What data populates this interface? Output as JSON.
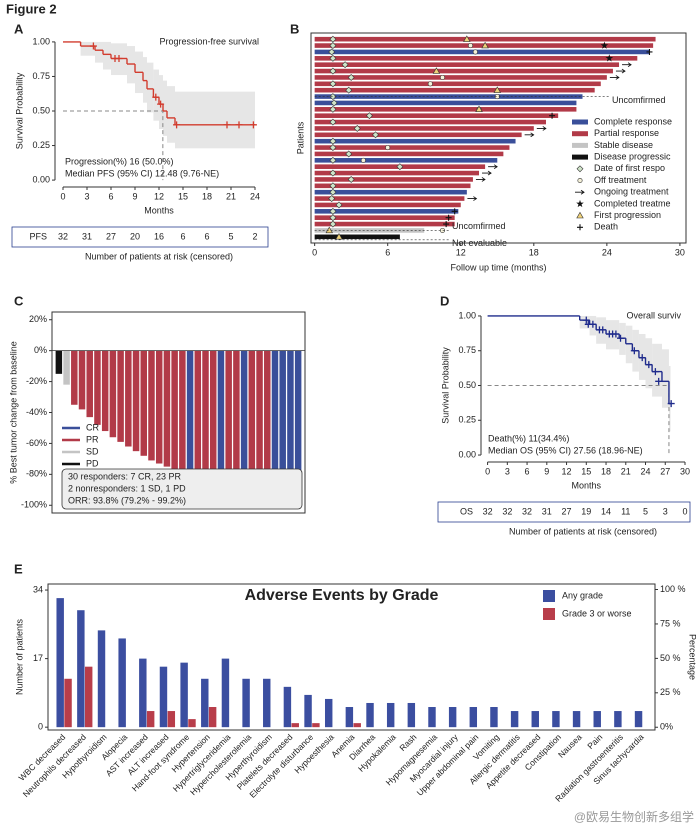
{
  "figure_label": "Figure 2",
  "panel_labels": [
    "A",
    "B",
    "C",
    "D",
    "E"
  ],
  "watermark": "@欧易生物创新多组学",
  "chart_data": [
    {
      "type": "step",
      "ylabel": "Survival Probability",
      "xlabel": "Months",
      "xlim": [
        -1,
        25
      ],
      "ylim": [
        -0.05,
        1.05
      ],
      "xticks": [
        0,
        3,
        6,
        9,
        12,
        15,
        18,
        21,
        24
      ],
      "yticks": [
        {
          "value": 0,
          "label": "0.00"
        },
        {
          "value": 0.25,
          "label": "0.25"
        },
        {
          "value": 0.5,
          "label": "0.50"
        },
        {
          "value": 0.75,
          "label": "0.75"
        },
        {
          "value": 1,
          "label": "1.00"
        }
      ],
      "x": [
        0,
        2.2,
        4,
        5,
        6,
        8,
        9,
        10,
        10.5,
        11.3,
        12,
        12.5,
        13,
        14,
        24
      ],
      "series": [
        {
          "name": "Progression-free survival",
          "color": "#d23c2e",
          "values": [
            1,
            0.97,
            0.94,
            0.91,
            0.88,
            0.84,
            0.78,
            0.72,
            0.66,
            0.6,
            0.55,
            0.5,
            0.45,
            0.4,
            0.4
          ],
          "ci_upper": [
            1,
            1,
            1,
            1,
            0.99,
            0.97,
            0.93,
            0.89,
            0.85,
            0.8,
            0.76,
            0.72,
            0.68,
            0.64,
            0.64
          ],
          "ci_lower": [
            1,
            0.9,
            0.85,
            0.8,
            0.76,
            0.7,
            0.63,
            0.56,
            0.49,
            0.43,
            0.37,
            0.32,
            0.27,
            0.23,
            0.23
          ],
          "censor_x": [
            3.8,
            6.5,
            7,
            11.6,
            12.2,
            14.2,
            20.5,
            22,
            23.8
          ],
          "censor_values": [
            0.97,
            0.88,
            0.88,
            0.6,
            0.55,
            0.4,
            0.4,
            0.4,
            0.4
          ]
        }
      ],
      "median": {
        "x": 12.48,
        "y": 0.5
      },
      "annotations": [
        "Progression(%)   16 (50.0%)",
        "Median PFS (95% CI) 12.48 (9.76-NE)"
      ],
      "risk_table": {
        "label": "PFS",
        "values": [
          32,
          31,
          27,
          20,
          16,
          6,
          6,
          5,
          2
        ],
        "title": "Number of patients at risk (censored)"
      }
    },
    {
      "type": "swimmer",
      "ylabel": "Patients",
      "xlabel": "Follow up time (months)",
      "xlim": [
        -0.3,
        30.5
      ],
      "xticks": [
        0,
        6,
        12,
        18,
        24,
        30
      ],
      "values": [
        28,
        27.8,
        27.5,
        26.5,
        25,
        24.5,
        24,
        23.5,
        23,
        22,
        21.5,
        21.5,
        20,
        19,
        18,
        17,
        16.5,
        16,
        15.5,
        15,
        14,
        13.5,
        13,
        12.8,
        12.5,
        12.3,
        12,
        11.8,
        11.5,
        11.5,
        9,
        7
      ],
      "groups": [
        "Partial response",
        "Partial response",
        "Complete response",
        "Partial response",
        "Partial response",
        "Partial response",
        "Partial response",
        "Partial response",
        "Partial response",
        "Complete response",
        "Complete response",
        "Partial response",
        "Partial response",
        "Partial response",
        "Partial response",
        "Partial response",
        "Complete response",
        "Partial response",
        "Partial response",
        "Complete response",
        "Partial response",
        "Partial response",
        "Partial response",
        "Partial response",
        "Complete response",
        "Partial response",
        "Partial response",
        "Complete response",
        "Partial response",
        "Partial response",
        "Stable disease",
        "Disease progressic"
      ],
      "first_response": [
        1.5,
        1.5,
        1.4,
        1.5,
        2.5,
        1.5,
        3,
        1.5,
        2.8,
        1.5,
        1.6,
        1.5,
        4.5,
        1.5,
        3.5,
        5,
        1.5,
        1.5,
        2.8,
        1.5,
        7,
        1.5,
        3,
        1.5,
        1.5,
        1.4,
        2,
        1.5,
        1.5,
        1.5,
        null,
        null
      ],
      "off_treatment": [
        null,
        12.8,
        13.2,
        null,
        null,
        null,
        10.5,
        9.5,
        null,
        15,
        null,
        13.5,
        null,
        null,
        null,
        null,
        null,
        6,
        null,
        4,
        null,
        null,
        null,
        null,
        null,
        null,
        null,
        null,
        null,
        null,
        10.5,
        null
      ],
      "ongoing": [
        false,
        false,
        false,
        false,
        true,
        true,
        true,
        false,
        false,
        false,
        false,
        false,
        false,
        false,
        true,
        true,
        false,
        false,
        false,
        false,
        true,
        true,
        true,
        false,
        false,
        true,
        false,
        false,
        false,
        false,
        false,
        false
      ],
      "completed": [
        null,
        23.8,
        null,
        24.2,
        null,
        null,
        null,
        null,
        null,
        null,
        null,
        null,
        null,
        null,
        null,
        null,
        null,
        null,
        null,
        null,
        null,
        null,
        null,
        null,
        null,
        null,
        null,
        null,
        null,
        null,
        null,
        null
      ],
      "first_progression": [
        12.5,
        14,
        null,
        null,
        null,
        10,
        null,
        null,
        15,
        null,
        null,
        13.5,
        null,
        null,
        null,
        null,
        null,
        null,
        null,
        null,
        null,
        null,
        null,
        null,
        null,
        null,
        null,
        null,
        null,
        null,
        1.2,
        2
      ],
      "death": [
        null,
        null,
        27.5,
        null,
        null,
        null,
        null,
        null,
        null,
        null,
        null,
        null,
        19.5,
        null,
        null,
        null,
        null,
        null,
        null,
        null,
        null,
        null,
        null,
        null,
        null,
        null,
        null,
        11.5,
        11,
        10.8,
        null,
        null
      ],
      "legend": [
        {
          "name": "Complete response",
          "color": "#3a4f9a",
          "kind": "bar"
        },
        {
          "name": "Partial response",
          "color": "#b23a48",
          "kind": "bar"
        },
        {
          "name": "Stable disease",
          "color": "#c4c4c4",
          "kind": "bar"
        },
        {
          "name": "Disease progressic",
          "color": "#111111",
          "kind": "bar"
        },
        {
          "name": "Date of first respo",
          "color": "#cfe3c8",
          "kind": "diamond"
        },
        {
          "name": "Off treatment",
          "color": "#f4f0d8",
          "kind": "circle"
        },
        {
          "name": "Ongoing treatment",
          "color": "#111111",
          "kind": "arrow"
        },
        {
          "name": "Completed treatme",
          "color": "#111111",
          "kind": "star"
        },
        {
          "name": "First progression",
          "color": "#f0d27a",
          "kind": "triangle"
        },
        {
          "name": "Death",
          "color": "#111111",
          "kind": "plus"
        }
      ],
      "annotations": [
        "Uncomfirmed",
        "Uncomfirmed",
        "Not evaluable"
      ]
    },
    {
      "type": "bar",
      "ylabel": "% Best tumor change from baseline",
      "ylim": [
        -105,
        25
      ],
      "yticks": [
        {
          "value": 20,
          "label": "20%"
        },
        {
          "value": 0,
          "label": "0%"
        },
        {
          "value": -20,
          "label": "-20%"
        },
        {
          "value": -40,
          "label": "-40%"
        },
        {
          "value": -60,
          "label": "-60%"
        },
        {
          "value": -80,
          "label": "-80%"
        },
        {
          "value": -100,
          "label": "-100%"
        }
      ],
      "values": [
        -15,
        -22,
        -35,
        -38,
        -43,
        -48,
        -52,
        -56,
        -59,
        -62,
        -65,
        -68,
        -71,
        -73,
        -75,
        -77,
        -79,
        -81,
        -83,
        -85,
        -87,
        -89,
        -90,
        -92,
        -100,
        -100,
        -100,
        -100,
        -100,
        -100,
        -100,
        -100
      ],
      "groups": [
        "PD",
        "SD",
        "PR",
        "PR",
        "PR",
        "PR",
        "PR",
        "PR",
        "PR",
        "PR",
        "PR",
        "PR",
        "PR",
        "PR",
        "PR",
        "PR",
        "PR",
        "CR",
        "PR",
        "PR",
        "PR",
        "CR",
        "PR",
        "PR",
        "CR",
        "PR",
        "PR",
        "PR",
        "CR",
        "CR",
        "CR",
        "CR"
      ],
      "legend": [
        {
          "name": "CR",
          "color": "#3a4f9a"
        },
        {
          "name": "PR",
          "color": "#b23a48"
        },
        {
          "name": "SD",
          "color": "#c4c4c4"
        },
        {
          "name": "PD",
          "color": "#111111"
        }
      ],
      "annotations": [
        "30 responders: 7 CR, 23 PR",
        "2 nonresponders: 1 SD, 1 PD",
        "ORR:  93.8% (79.2% - 99.2%)"
      ]
    },
    {
      "type": "step",
      "ylabel": "Survival Probability",
      "xlabel": "Months",
      "xlim": [
        -1,
        30
      ],
      "ylim": [
        -0.05,
        1.05
      ],
      "xticks": [
        0,
        3,
        6,
        9,
        12,
        15,
        18,
        21,
        24,
        27,
        30
      ],
      "yticks": [
        {
          "value": 0,
          "label": "0.00"
        },
        {
          "value": 0.25,
          "label": "0.25"
        },
        {
          "value": 0.5,
          "label": "0.50"
        },
        {
          "value": 0.75,
          "label": "0.75"
        },
        {
          "value": 1,
          "label": "1.00"
        }
      ],
      "x": [
        0,
        14,
        15.5,
        16.5,
        18,
        20,
        21,
        22,
        23,
        24,
        25,
        26.5,
        27.56,
        27.8
      ],
      "series": [
        {
          "name": "Overall surviv",
          "color": "#1f2b8c",
          "values": [
            1,
            0.97,
            0.94,
            0.9,
            0.87,
            0.84,
            0.8,
            0.75,
            0.7,
            0.65,
            0.6,
            0.53,
            0.37,
            0.37
          ],
          "ci_upper": [
            1,
            1,
            1,
            0.99,
            0.97,
            0.95,
            0.93,
            0.9,
            0.87,
            0.84,
            0.8,
            0.76,
            0.64,
            0.64
          ],
          "ci_lower": [
            1,
            0.91,
            0.86,
            0.8,
            0.76,
            0.72,
            0.66,
            0.6,
            0.54,
            0.48,
            0.42,
            0.34,
            0.17,
            0.17
          ],
          "censor_x": [
            15,
            15.3,
            16,
            17,
            17.5,
            18.5,
            19,
            19.5,
            20.2,
            22.3,
            23.5,
            24.5,
            25.5,
            26,
            27.9
          ],
          "censor_values": [
            0.97,
            0.94,
            0.94,
            0.9,
            0.9,
            0.87,
            0.87,
            0.87,
            0.84,
            0.75,
            0.7,
            0.65,
            0.6,
            0.53,
            0.37
          ]
        }
      ],
      "median": {
        "x": 27.56,
        "y": 0.5
      },
      "annotations": [
        "Death(%)   11(34.4%)",
        "Median OS (95% CI) 27.56 (18.96-NE)"
      ],
      "risk_table": {
        "label": "OS",
        "values": [
          32,
          32,
          32,
          31,
          27,
          19,
          14,
          11,
          5,
          3,
          0
        ],
        "title": "Number of patients at risk (censored)"
      }
    },
    {
      "type": "bar",
      "title": "Adverse Events by Grade",
      "ylabel": "Number of patients",
      "y2label": "Percentage",
      "ylim": [
        -0.7,
        35.5
      ],
      "yticks": [
        0,
        17,
        34
      ],
      "y2lim": [
        -2,
        104
      ],
      "y2ticks": [
        {
          "value": 0,
          "label": "0%"
        },
        {
          "value": 25,
          "label": "25 %"
        },
        {
          "value": 50,
          "label": "50 %"
        },
        {
          "value": 75,
          "label": "75 %"
        },
        {
          "value": 100,
          "label": "100 %"
        }
      ],
      "categories": [
        "WBC decreased",
        "Neutrophils decreased",
        "Hypothyroidism",
        "Alopecia",
        "AST increased",
        "ALT increased",
        "Hand-foot syndrome",
        "Hypertension",
        "Hypertriglyceridemia",
        "Hypercholesterolemia",
        "Hyperthyroidism",
        "Platelets decreased",
        "Electrolyte disturbance",
        "Hypoesthesia",
        "Anemia",
        "Diarrhea",
        "Hypokalemia",
        "Rash",
        "Hypomagnesemia",
        "Myocardial injury",
        "Upper abdominal pain",
        "Vomiting",
        "Allergic dermatitis",
        "Appetite decreased",
        "Constipation",
        "Nausea",
        "Pain",
        "Radiation gastroenteritis",
        "Sinus tachycardia"
      ],
      "series": [
        {
          "name": "Any grade",
          "color": "#3b4ea0",
          "values": [
            32,
            29,
            24,
            22,
            17,
            15,
            16,
            12,
            17,
            12,
            12,
            10,
            8,
            7,
            5,
            6,
            6,
            6,
            5,
            5,
            5,
            5,
            4,
            4,
            4,
            4,
            4,
            4,
            4
          ]
        },
        {
          "name": "Grade 3 or worse",
          "color": "#b83d4a",
          "values": [
            12,
            15,
            0,
            0,
            4,
            4,
            2,
            5,
            0,
            0,
            0,
            1,
            1,
            0,
            1,
            0,
            0,
            0,
            0,
            0,
            0,
            0,
            0,
            0,
            0,
            0,
            0,
            0,
            0
          ]
        }
      ]
    }
  ]
}
